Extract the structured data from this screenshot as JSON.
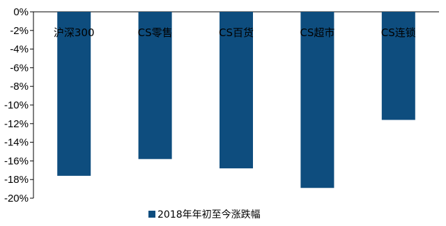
{
  "chart_data": {
    "type": "bar",
    "categories": [
      "沪深300",
      "CS零售",
      "CS百货",
      "CS超市",
      "CS连锁"
    ],
    "series": [
      {
        "name": "2018年年初至今涨跌幅",
        "values": [
          -17.6,
          -15.8,
          -16.8,
          -18.9,
          -11.6
        ],
        "color": "#0E4D7E"
      }
    ],
    "ylim": [
      -20,
      0
    ],
    "yticks": [
      0,
      -2,
      -4,
      -6,
      -8,
      -10,
      -12,
      -14,
      -16,
      -18,
      -20
    ],
    "ytick_labels": [
      "0%",
      "-2%",
      "-4%",
      "-6%",
      "-8%",
      "-10%",
      "-12%",
      "-14%",
      "-16%",
      "-18%",
      "-20%"
    ],
    "grid": false,
    "legend_position": "bottom",
    "title": "",
    "xlabel": "",
    "ylabel": ""
  }
}
